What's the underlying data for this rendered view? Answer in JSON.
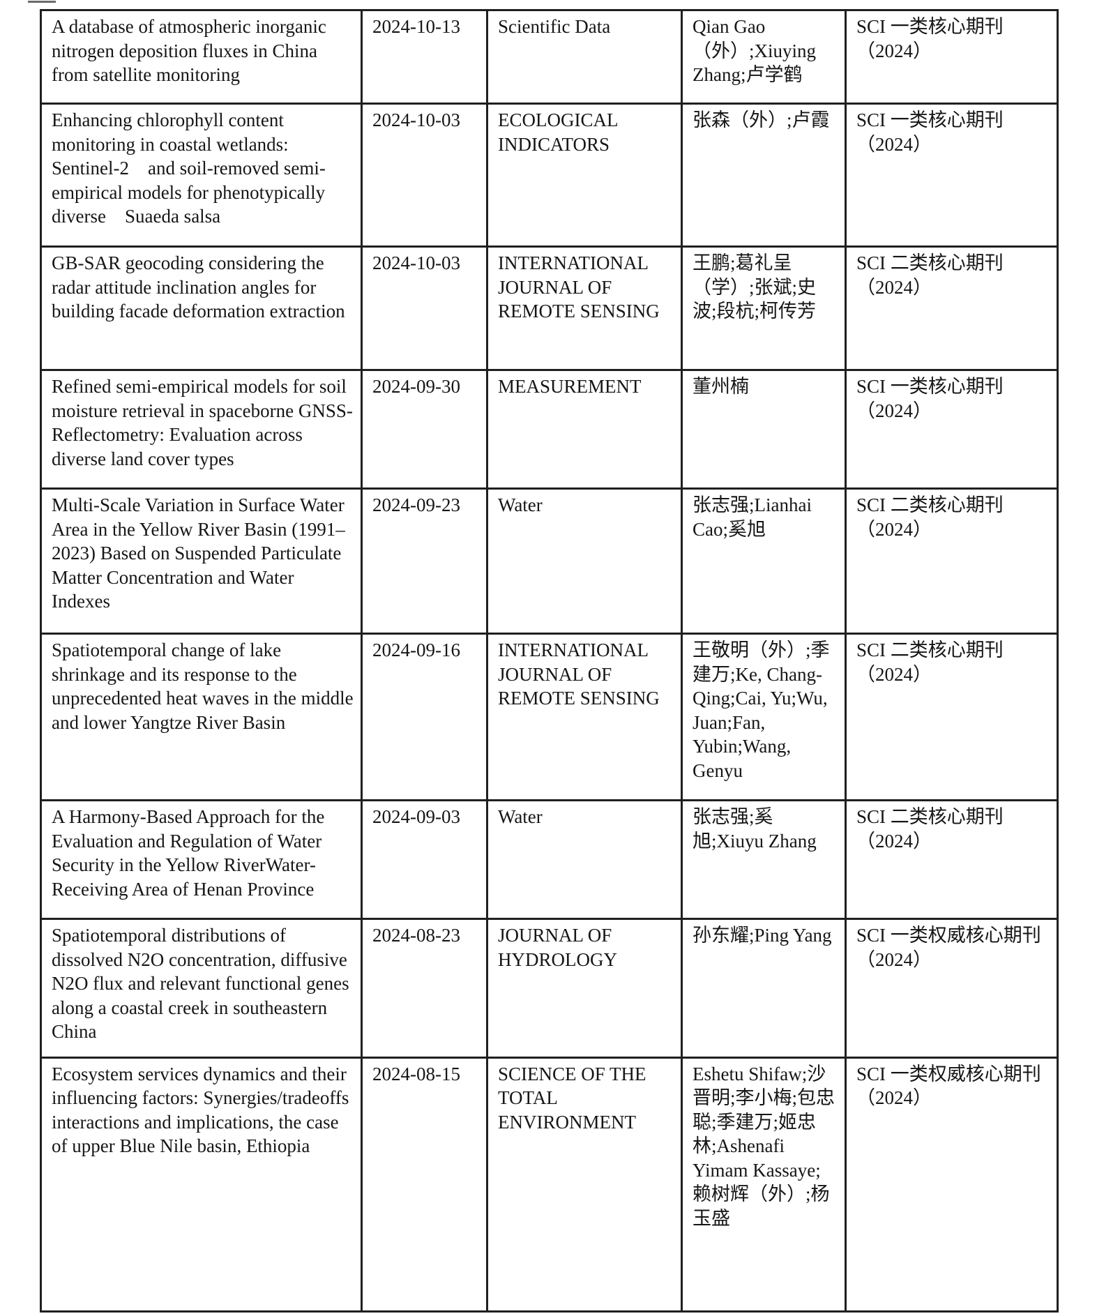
{
  "page": {
    "background_color": "#ffffff",
    "border_color": "#1f1f1f",
    "text_color": "#161616"
  },
  "table": {
    "field_order": [
      "title",
      "date",
      "journal",
      "authors",
      "classification"
    ],
    "rows": [
      {
        "title": "A database of atmospheric inorganic nitrogen deposition fluxes in China from satellite monitoring",
        "date": "2024-10-13",
        "journal": "Scientific Data",
        "authors": "Qian Gao（外）;Xiuying Zhang;卢学鹤",
        "classification": "SCI 一类核心期刊（2024）"
      },
      {
        "title": "Enhancing chlorophyll content monitoring in coastal wetlands: Sentinel-2　and soil-removed semi-empirical models for phenotypically diverse　Suaeda salsa",
        "date": "2024-10-03",
        "journal": "ECOLOGICAL INDICATORS",
        "authors": "张森（外）;卢霞",
        "classification": "SCI 一类核心期刊（2024）"
      },
      {
        "title": "GB-SAR geocoding considering the radar attitude inclination angles for building facade deformation extraction",
        "date": "2024-10-03",
        "journal": "INTERNATIONAL JOURNAL OF REMOTE SENSING",
        "authors": "王鹏;葛礼呈（学）;张斌;史波;段杭;柯传芳",
        "classification": "SCI 二类核心期刊（2024）"
      },
      {
        "title": "Refined semi-empirical models for soil moisture retrieval in spaceborne GNSS-Reflectometry: Evaluation across diverse land cover types",
        "date": "2024-09-30",
        "journal": "MEASUREMENT",
        "authors": "董州楠",
        "classification": "SCI 一类核心期刊（2024）"
      },
      {
        "title": "Multi-Scale Variation in Surface Water Area in the Yellow River Basin (1991–2023) Based on Suspended Particulate Matter Concentration and Water Indexes",
        "date": "2024-09-23",
        "journal": "Water",
        "authors": "张志强;Lianhai Cao;奚旭",
        "classification": "SCI 二类核心期刊（2024）"
      },
      {
        "title": "Spatiotemporal change of lake shrinkage and its response to the unprecedented heat waves in the middle and lower Yangtze River Basin",
        "date": "2024-09-16",
        "journal": "INTERNATIONAL JOURNAL OF REMOTE SENSING",
        "authors": "王敬明（外）;季建万;Ke, Chang-Qing;Cai, Yu;Wu, Juan;Fan, Yubin;Wang, Genyu",
        "classification": "SCI 二类核心期刊（2024）"
      },
      {
        "title": "A Harmony-Based Approach for the Evaluation and Regulation of Water Security in the Yellow RiverWater-Receiving Area of Henan Province",
        "date": "2024-09-03",
        "journal": "Water",
        "authors": "张志强;奚旭;Xiuyu Zhang",
        "classification": "SCI 二类核心期刊（2024）"
      },
      {
        "title": "Spatiotemporal distributions of dissolved N2O concentration, diffusive N2O flux and relevant functional genes along a coastal creek in southeastern China",
        "date": "2024-08-23",
        "journal": "JOURNAL OF HYDROLOGY",
        "authors": "孙东耀;Ping Yang",
        "classification": "SCI 一类权威核心期刊（2024）"
      },
      {
        "title": "Ecosystem services dynamics and their influencing factors: Synergies/tradeoffs interactions and implications, the case of upper Blue Nile basin, Ethiopia",
        "date": "2024-08-15",
        "journal": "SCIENCE OF THE TOTAL ENVIRONMENT",
        "authors": "Eshetu Shifaw;沙晋明;李小梅;包忠聪;季建万;姬忠林;Ashenafi Yimam Kassaye;赖树辉（外）;杨玉盛",
        "classification": "SCI 一类权威核心期刊（2024）"
      }
    ]
  }
}
